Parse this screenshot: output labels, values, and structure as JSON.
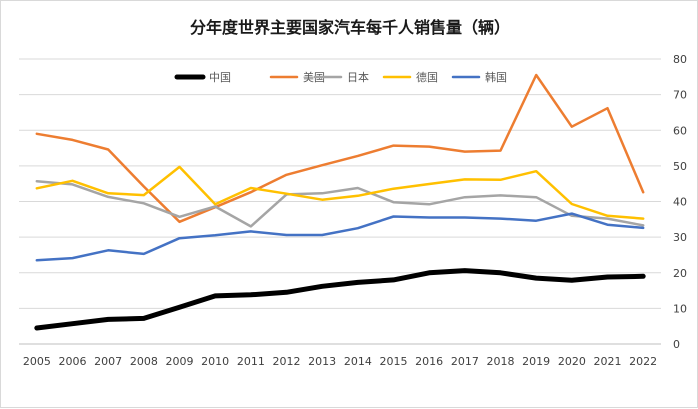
{
  "chart_data": {
    "type": "line",
    "title": "分年度世界主要国家汽车每千人销售量（辆）",
    "xlabel": "",
    "ylabel": "",
    "x": [
      "2005",
      "2006",
      "2007",
      "2008",
      "2009",
      "2010",
      "2011",
      "2012",
      "2013",
      "2014",
      "2015",
      "2016",
      "2017",
      "2018",
      "2019",
      "2020",
      "2021",
      "2022"
    ],
    "ylim": [
      0,
      80
    ],
    "yticks": [
      "0",
      "10",
      "20",
      "30",
      "40",
      "50",
      "60",
      "70",
      "80"
    ],
    "y_axis_side": "right",
    "grid": true,
    "legend_position": "top",
    "series": [
      {
        "name": "中国",
        "color": "#000000",
        "width": "thick",
        "values": [
          4.5,
          5.7,
          6.9,
          7.2,
          10.3,
          13.5,
          13.8,
          14.5,
          16.2,
          17.3,
          18.0,
          20.0,
          20.6,
          20.0,
          18.5,
          17.9,
          18.8,
          19.0
        ]
      },
      {
        "name": "美国",
        "color": "#ED7D31",
        "values": [
          59.0,
          57.3,
          54.6,
          44.2,
          34.3,
          38.4,
          42.6,
          47.5,
          50.2,
          52.8,
          55.7,
          55.4,
          54.0,
          54.3,
          75.5,
          61.0,
          66.2,
          42.6
        ]
      },
      {
        "name": "日本",
        "color": "#A5A5A5",
        "values": [
          45.7,
          44.8,
          41.3,
          39.5,
          35.7,
          38.6,
          33.0,
          42.0,
          42.3,
          43.8,
          39.8,
          39.2,
          41.2,
          41.7,
          41.2,
          36.0,
          35.2,
          33.3
        ]
      },
      {
        "name": "德国",
        "color": "#FFC000",
        "values": [
          43.7,
          45.8,
          42.3,
          41.8,
          49.7,
          39.2,
          43.8,
          42.2,
          40.5,
          41.6,
          43.6,
          44.9,
          46.2,
          46.1,
          48.5,
          39.3,
          36.0,
          35.2
        ]
      },
      {
        "name": "韩国",
        "color": "#4472C4",
        "values": [
          23.5,
          24.1,
          26.3,
          25.3,
          29.7,
          30.5,
          31.6,
          30.6,
          30.6,
          32.5,
          35.8,
          35.5,
          35.5,
          35.2,
          34.6,
          36.6,
          33.5,
          32.6
        ]
      }
    ]
  }
}
